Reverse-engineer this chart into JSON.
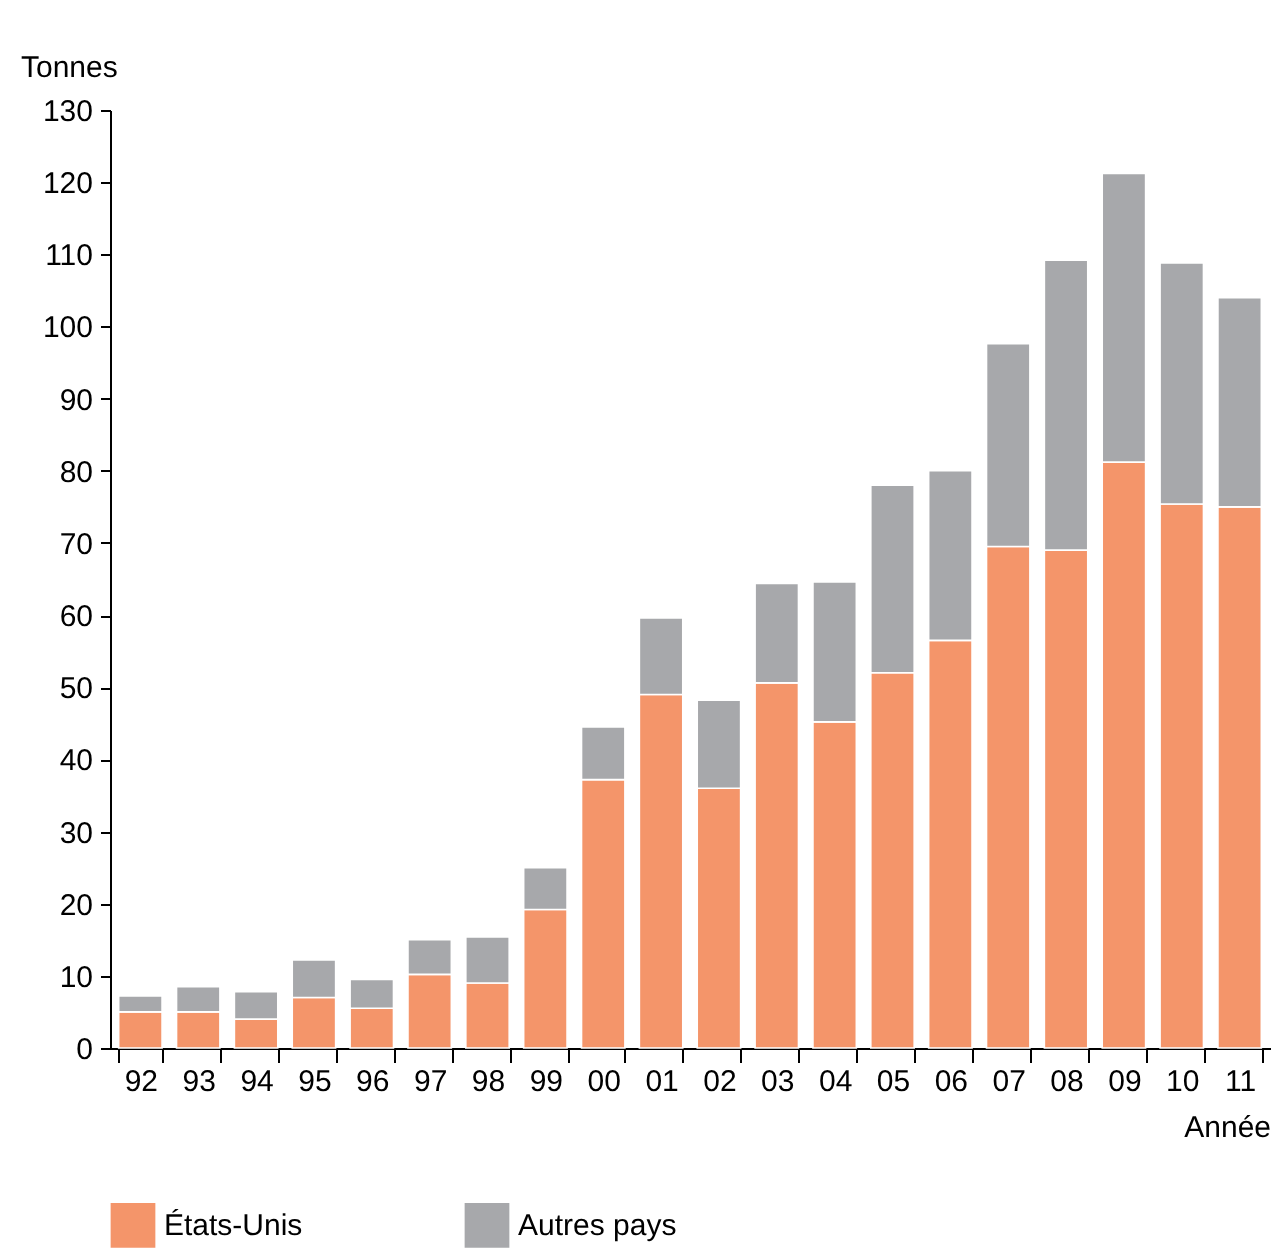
{
  "chart_data": {
    "type": "bar",
    "stacked": true,
    "xlabel": "Année",
    "ylabel": "Tonnes",
    "categories": [
      "92",
      "93",
      "94",
      "95",
      "96",
      "97",
      "98",
      "99",
      "00",
      "01",
      "02",
      "03",
      "04",
      "05",
      "06",
      "07",
      "08",
      "09",
      "10",
      "11"
    ],
    "series": [
      {
        "name": "États-Unis",
        "color": "#f4956a",
        "values": [
          5,
          5,
          4,
          7,
          5.5,
          10.2,
          9,
          19.2,
          37.2,
          49,
          36,
          50.6,
          45.2,
          52,
          56.5,
          69.5,
          69,
          81.2,
          75.4,
          75
        ]
      },
      {
        "name": "Autres pays",
        "color": "#a7a8ab",
        "values": [
          2.2,
          3.5,
          3.8,
          5.2,
          4,
          4.8,
          6.4,
          5.8,
          7.3,
          10.6,
          12.2,
          13.8,
          19.4,
          26,
          23.5,
          28.1,
          40.2,
          40,
          33.4,
          29
        ]
      }
    ],
    "ylim": [
      0,
      130
    ],
    "yticks": [
      0,
      10,
      20,
      30,
      40,
      50,
      60,
      70,
      80,
      90,
      100,
      110,
      120,
      130
    ],
    "grid": false,
    "legend": "bottom"
  }
}
